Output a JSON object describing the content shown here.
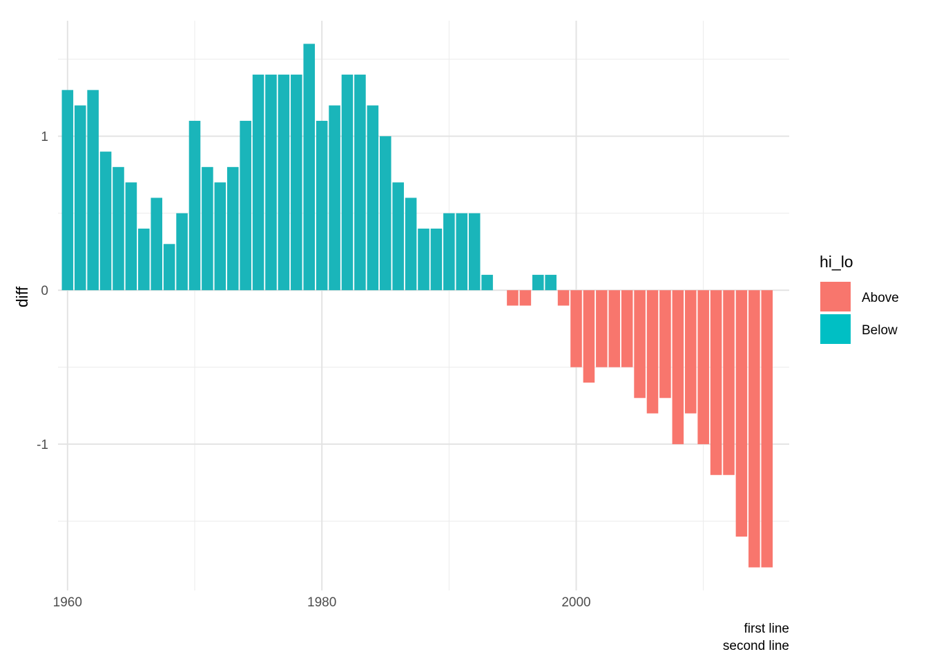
{
  "chart_data": {
    "type": "bar",
    "title": "",
    "xlabel": "",
    "ylabel": "diff",
    "caption_lines": [
      "first line",
      "second line"
    ],
    "xlim": [
      1959.25,
      2016.75
    ],
    "ylim": [
      -1.95,
      1.75
    ],
    "x_ticks": [
      1960,
      1980,
      2000
    ],
    "y_ticks": [
      -1,
      0,
      1
    ],
    "y_tick_labels": [
      "-1",
      "0",
      "1"
    ],
    "grid": true,
    "legend": {
      "title": "hi_lo",
      "position": "right",
      "entries": [
        {
          "label": "Above",
          "color": "#F8766D"
        },
        {
          "label": "Below",
          "color": "#00BFC4"
        }
      ]
    },
    "colors": {
      "Above": "#F8766D",
      "Below": "#1AB5BA"
    },
    "x": [
      1960,
      1961,
      1962,
      1963,
      1964,
      1965,
      1966,
      1967,
      1968,
      1969,
      1970,
      1971,
      1972,
      1973,
      1974,
      1975,
      1976,
      1977,
      1978,
      1979,
      1980,
      1981,
      1982,
      1983,
      1984,
      1985,
      1986,
      1987,
      1988,
      1989,
      1990,
      1991,
      1992,
      1993,
      1994,
      1995,
      1996,
      1997,
      1998,
      1999,
      2000,
      2001,
      2002,
      2003,
      2004,
      2005,
      2006,
      2007,
      2008,
      2009,
      2010,
      2011,
      2012,
      2013,
      2014,
      2015,
      2016
    ],
    "values": [
      1.3,
      1.2,
      1.3,
      0.9,
      0.8,
      0.7,
      0.4,
      0.6,
      0.3,
      0.5,
      1.1,
      0.8,
      0.7,
      0.8,
      1.1,
      1.4,
      1.4,
      1.4,
      1.4,
      1.6,
      1.1,
      1.2,
      1.4,
      1.4,
      1.2,
      1.0,
      0.7,
      0.6,
      0.4,
      0.4,
      0.5,
      0.5,
      0.5,
      0.1,
      0.0,
      -0.1,
      -0.1,
      0.1,
      0.1,
      -0.1,
      -0.5,
      -0.6,
      -0.5,
      -0.5,
      -0.5,
      -0.7,
      -0.8,
      -0.7,
      -1.0,
      -0.8,
      -1.0,
      -1.2,
      -1.2,
      -1.6,
      -1.8,
      -1.8,
      0.0
    ],
    "groups": [
      "Below",
      "Below",
      "Below",
      "Below",
      "Below",
      "Below",
      "Below",
      "Below",
      "Below",
      "Below",
      "Below",
      "Below",
      "Below",
      "Below",
      "Below",
      "Below",
      "Below",
      "Below",
      "Below",
      "Below",
      "Below",
      "Below",
      "Below",
      "Below",
      "Below",
      "Below",
      "Below",
      "Below",
      "Below",
      "Below",
      "Below",
      "Below",
      "Below",
      "Below",
      "Below",
      "Above",
      "Above",
      "Below",
      "Below",
      "Above",
      "Above",
      "Above",
      "Above",
      "Above",
      "Above",
      "Above",
      "Above",
      "Above",
      "Above",
      "Above",
      "Above",
      "Above",
      "Above",
      "Above",
      "Above",
      "Above",
      "Above"
    ]
  }
}
